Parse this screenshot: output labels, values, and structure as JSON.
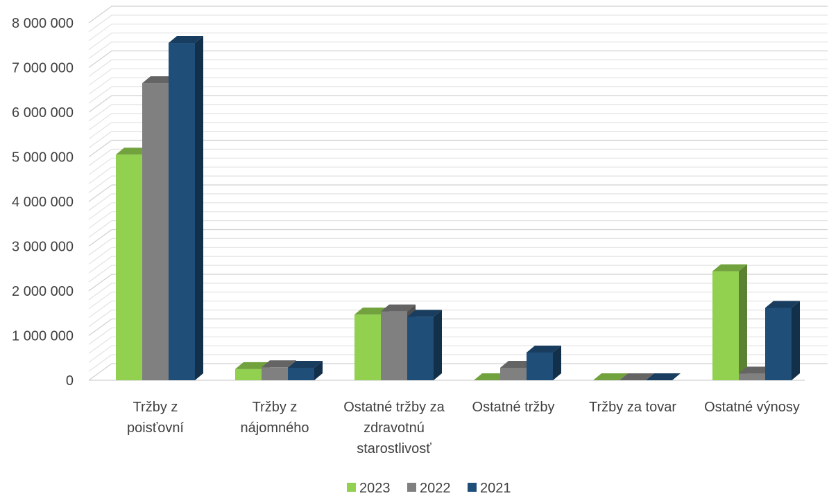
{
  "chart_data": {
    "type": "bar",
    "categories": [
      [
        "Tržby z",
        "poisťovní"
      ],
      [
        "Tržby z",
        "nájomného"
      ],
      [
        "Ostatné tržby za",
        "zdravotnú",
        "starostlivosť"
      ],
      [
        "Ostatné tržby"
      ],
      [
        "Tržby za tovar"
      ],
      [
        "Ostatné výnosy"
      ]
    ],
    "series": [
      {
        "name": "2023",
        "color": "#92d050",
        "values": [
          5050000,
          250000,
          1470000,
          0,
          0,
          2440000
        ]
      },
      {
        "name": "2022",
        "color": "#808080",
        "values": [
          6650000,
          290000,
          1540000,
          280000,
          0,
          150000
        ]
      },
      {
        "name": "2021",
        "color": "#1f4e79",
        "values": [
          7550000,
          280000,
          1420000,
          620000,
          0,
          1620000
        ]
      }
    ],
    "ylim": [
      0,
      8000000
    ],
    "yticks": [
      "0",
      "1 000 000",
      "2 000 000",
      "3 000 000",
      "4 000 000",
      "5 000 000",
      "6 000 000",
      "7 000 000",
      "8 000 000"
    ],
    "grid": true,
    "legend": "bottom-center"
  }
}
